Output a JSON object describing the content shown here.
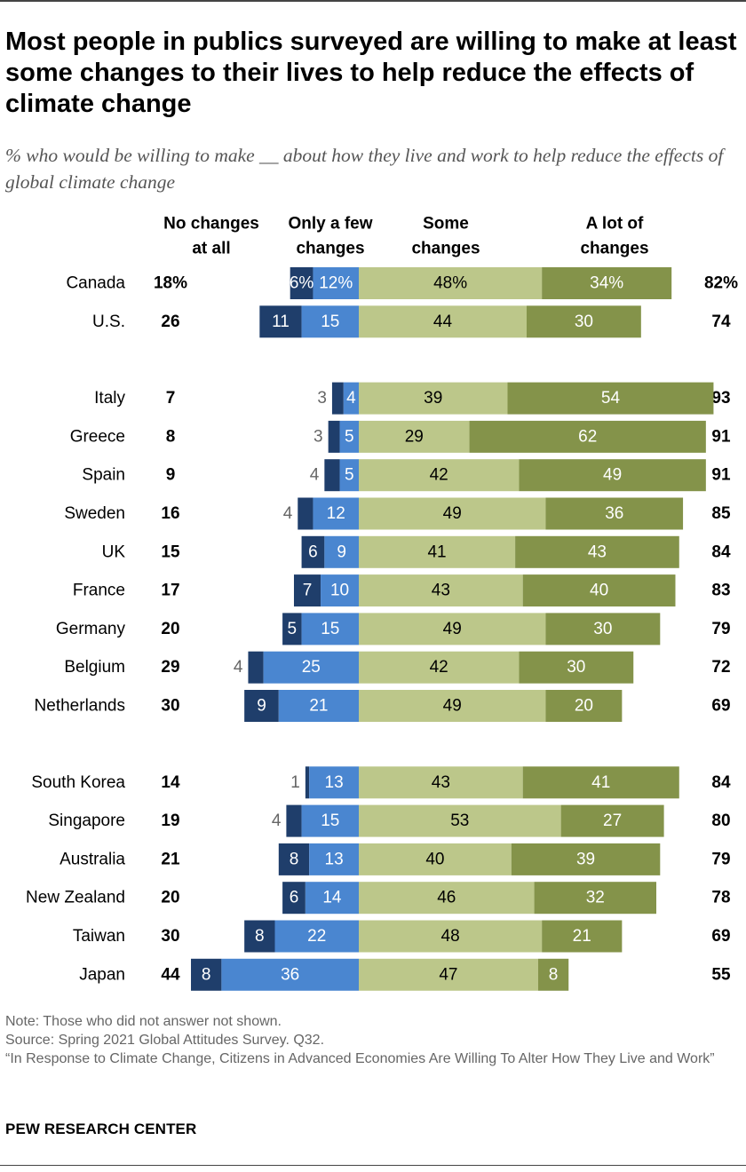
{
  "title": "Most people in publics surveyed are willing to make at least some changes to their lives to help reduce the effects of climate change",
  "subtitle": "% who would be willing to make __ about how they live and work to help reduce the effects of global climate change",
  "colors": {
    "no_changes": "#1f3e6b",
    "few_changes": "#4a86d0",
    "some_changes": "#bcc78a",
    "lot_changes": "#84934a",
    "label_dark": "#000000",
    "label_light": "#ffffff",
    "label_gray": "#666666"
  },
  "chart_data": {
    "type": "bar",
    "orientation": "horizontal-diverging",
    "headers": {
      "no_changes_line1": "No changes",
      "no_changes_line2": "at all",
      "few_line1": "Only a few",
      "few_line2": "changes",
      "some_line1": "Some",
      "some_line2": "changes",
      "lot_line1": "A lot of",
      "lot_line2": "changes"
    },
    "series": [
      {
        "key": "no_changes",
        "name": "No changes at all"
      },
      {
        "key": "few",
        "name": "Only a few changes"
      },
      {
        "key": "some",
        "name": "Some changes"
      },
      {
        "key": "lot",
        "name": "A lot of changes"
      }
    ],
    "groups": [
      [
        {
          "country": "Canada",
          "no_changes": "18%",
          "dark": "6%",
          "few": "12%",
          "some": "48%",
          "lot": "34%",
          "total": "82%",
          "values": [
            6,
            12,
            48,
            34
          ]
        },
        {
          "country": "U.S.",
          "no_changes": "26",
          "dark": "11",
          "few": "15",
          "some": "44",
          "lot": "30",
          "total": "74",
          "values": [
            11,
            15,
            44,
            30
          ]
        }
      ],
      [
        {
          "country": "Italy",
          "no_changes": "7",
          "dark": "3",
          "few": "4",
          "some": "39",
          "lot": "54",
          "total": "93",
          "values": [
            3,
            4,
            39,
            54
          ]
        },
        {
          "country": "Greece",
          "no_changes": "8",
          "dark": "3",
          "few": "5",
          "some": "29",
          "lot": "62",
          "total": "91",
          "values": [
            3,
            5,
            29,
            62
          ]
        },
        {
          "country": "Spain",
          "no_changes": "9",
          "dark": "4",
          "few": "5",
          "some": "42",
          "lot": "49",
          "total": "91",
          "values": [
            4,
            5,
            42,
            49
          ]
        },
        {
          "country": "Sweden",
          "no_changes": "16",
          "dark": "4",
          "few": "12",
          "some": "49",
          "lot": "36",
          "total": "85",
          "values": [
            4,
            12,
            49,
            36
          ]
        },
        {
          "country": "UK",
          "no_changes": "15",
          "dark": "6",
          "few": "9",
          "some": "41",
          "lot": "43",
          "total": "84",
          "values": [
            6,
            9,
            41,
            43
          ]
        },
        {
          "country": "France",
          "no_changes": "17",
          "dark": "7",
          "few": "10",
          "some": "43",
          "lot": "40",
          "total": "83",
          "values": [
            7,
            10,
            43,
            40
          ]
        },
        {
          "country": "Germany",
          "no_changes": "20",
          "dark": "5",
          "few": "15",
          "some": "49",
          "lot": "30",
          "total": "79",
          "values": [
            5,
            15,
            49,
            30
          ]
        },
        {
          "country": "Belgium",
          "no_changes": "29",
          "dark": "4",
          "few": "25",
          "some": "42",
          "lot": "30",
          "total": "72",
          "values": [
            4,
            25,
            42,
            30
          ]
        },
        {
          "country": "Netherlands",
          "no_changes": "30",
          "dark": "9",
          "few": "21",
          "some": "49",
          "lot": "20",
          "total": "69",
          "values": [
            9,
            21,
            49,
            20
          ]
        }
      ],
      [
        {
          "country": "South Korea",
          "no_changes": "14",
          "dark": "1",
          "few": "13",
          "some": "43",
          "lot": "41",
          "total": "84",
          "values": [
            1,
            13,
            43,
            41
          ]
        },
        {
          "country": "Singapore",
          "no_changes": "19",
          "dark": "4",
          "few": "15",
          "some": "53",
          "lot": "27",
          "total": "80",
          "values": [
            4,
            15,
            53,
            27
          ]
        },
        {
          "country": "Australia",
          "no_changes": "21",
          "dark": "8",
          "few": "13",
          "some": "40",
          "lot": "39",
          "total": "79",
          "values": [
            8,
            13,
            40,
            39
          ]
        },
        {
          "country": "New Zealand",
          "no_changes": "20",
          "dark": "6",
          "few": "14",
          "some": "46",
          "lot": "32",
          "total": "78",
          "values": [
            6,
            14,
            46,
            32
          ]
        },
        {
          "country": "Taiwan",
          "no_changes": "30",
          "dark": "8",
          "few": "22",
          "some": "48",
          "lot": "21",
          "total": "69",
          "values": [
            8,
            22,
            48,
            21
          ]
        },
        {
          "country": "Japan",
          "no_changes": "44",
          "dark": "8",
          "few": "36",
          "some": "47",
          "lot": "8",
          "total": "55",
          "values": [
            8,
            36,
            47,
            8
          ]
        }
      ]
    ]
  },
  "footer": {
    "note": "Note: Those who did not answer not shown.",
    "source": "Source: Spring 2021 Global Attitudes Survey. Q32.",
    "report": "“In Response to Climate Change, Citizens in Advanced Economies Are Willing To Alter How They Live and Work”",
    "org": "PEW RESEARCH CENTER"
  }
}
